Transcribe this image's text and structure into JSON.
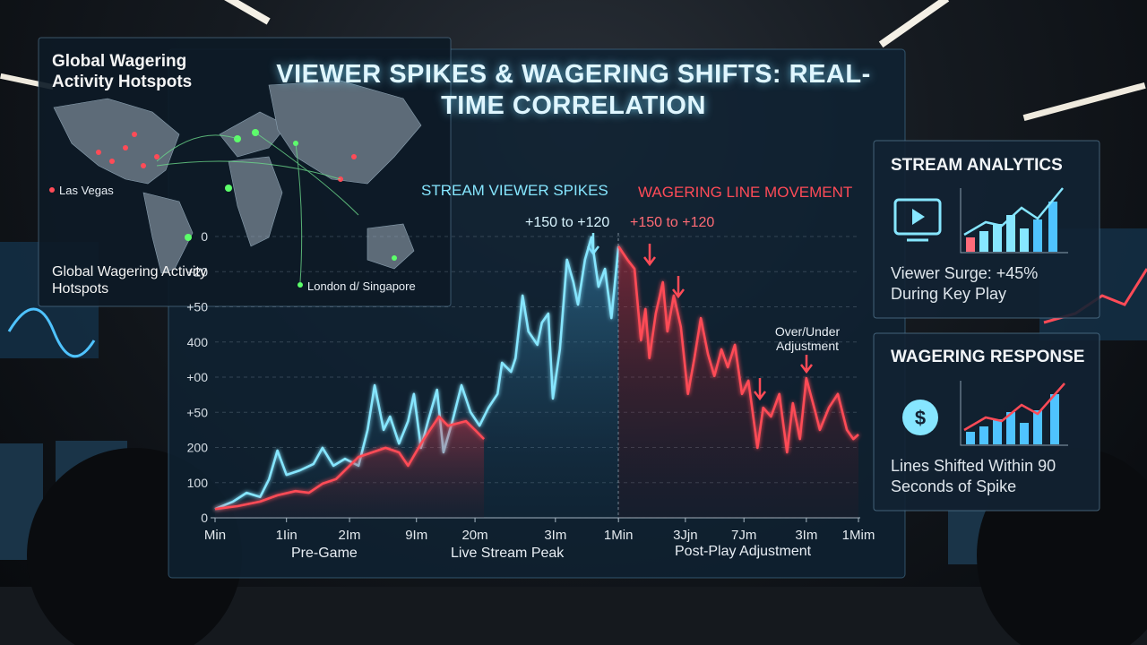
{
  "chart_data": {
    "type": "line",
    "title": "VIEWER SPIKES & WAGERING SHIFTS: REAL-TIME CORRELATION",
    "xlim": [
      0,
      10
    ],
    "xticks": [
      {
        "value": 0,
        "label": "Min"
      },
      {
        "value": 1.11,
        "label": "1Iin"
      },
      {
        "value": 2.09,
        "label": "2Im"
      },
      {
        "value": 3.13,
        "label": "9Im"
      },
      {
        "value": 4.04,
        "label": "20m"
      },
      {
        "value": 5.29,
        "label": "3Im"
      },
      {
        "value": 6.27,
        "label": "1Min"
      },
      {
        "value": 7.31,
        "label": "3Jjn"
      },
      {
        "value": 8.22,
        "label": "7Jm"
      },
      {
        "value": 9.19,
        "label": "3Im"
      },
      {
        "value": 10,
        "label": "1Mim"
      }
    ],
    "ylim": [
      0,
      800
    ],
    "yticks": [
      0,
      100,
      200,
      {
        "value": 300,
        "label": "+50"
      },
      {
        "value": 400,
        "label": "+00"
      },
      {
        "value": 500,
        "label": "400"
      },
      {
        "value": 600,
        "label": "+50"
      },
      {
        "value": 700,
        "label": "+20"
      },
      {
        "value": 800,
        "label": "0"
      }
    ],
    "grid": true,
    "phases": [
      "Pre-Game",
      "Live Stream Peak",
      "Post-Play Adjustment"
    ],
    "annotations": [
      "+150 to +120",
      "+150 to +120",
      "Over/Under Adjustment"
    ],
    "series": [
      {
        "name": "STREAM VIEWER SPIKES",
        "color": "#86e6ff",
        "x": [
          0,
          0.28,
          0.49,
          0.7,
          0.84,
          0.97,
          1.11,
          1.32,
          1.53,
          1.67,
          1.84,
          2.02,
          2.23,
          2.37,
          2.48,
          2.62,
          2.72,
          2.86,
          3.0,
          3.09,
          3.2,
          3.31,
          3.45,
          3.55,
          3.69,
          3.83,
          3.97,
          4.11,
          4.25,
          4.39,
          4.46,
          4.6,
          4.67,
          4.78,
          4.87,
          5.01,
          5.08,
          5.18,
          5.25,
          5.36,
          5.47,
          5.57,
          5.64,
          5.75,
          5.85,
          5.96,
          6.06,
          6.16,
          6.27
        ],
        "values": [
          25,
          46,
          71,
          59,
          110,
          191,
          122,
          135,
          153,
          199,
          148,
          168,
          148,
          250,
          377,
          250,
          288,
          211,
          275,
          352,
          199,
          275,
          364,
          186,
          275,
          377,
          301,
          262,
          313,
          352,
          441,
          415,
          454,
          632,
          530,
          492,
          555,
          581,
          339,
          479,
          734,
          670,
          606,
          734,
          798,
          657,
          708,
          568,
          772
        ]
      },
      {
        "name": "WAGERING LINE MOVEMENT",
        "color": "#ff4b57",
        "x": [
          0,
          0.35,
          0.7,
          0.97,
          1.25,
          1.46,
          1.67,
          1.88,
          2.09,
          2.23,
          2.44,
          2.65,
          2.86,
          3.0,
          3.2,
          3.34,
          3.48,
          3.62,
          3.9,
          4.04,
          4.18,
          null,
          6.27,
          6.41,
          6.52,
          6.62,
          6.69,
          6.75,
          6.85,
          6.96,
          7.03,
          7.13,
          7.24,
          7.35,
          7.45,
          7.55,
          7.66,
          7.76,
          7.87,
          7.97,
          8.08,
          8.19,
          8.29,
          8.43,
          8.52,
          8.64,
          8.77,
          8.89,
          8.98,
          9.09,
          9.19,
          9.33,
          9.4,
          9.54,
          9.68,
          9.82,
          9.92,
          10.0
        ],
        "values": [
          25,
          33,
          46,
          64,
          76,
          71,
          97,
          110,
          148,
          173,
          186,
          199,
          186,
          148,
          211,
          250,
          288,
          262,
          275,
          250,
          224,
          null,
          772,
          734,
          708,
          505,
          594,
          454,
          581,
          670,
          530,
          632,
          543,
          352,
          454,
          568,
          466,
          403,
          479,
          428,
          492,
          352,
          390,
          199,
          313,
          288,
          352,
          186,
          326,
          224,
          397,
          301,
          250,
          313,
          352,
          250,
          224,
          237
        ]
      }
    ]
  },
  "map": {
    "title": "Global Wagering Activity Hotspots",
    "caption": "Global Wagering Activity Hotspots",
    "labels": [
      "Las Vegas",
      "London d/ Singapore"
    ]
  },
  "panels": [
    {
      "title": "STREAM ANALYTICS",
      "text": "Viewer Surge: +45% During Key Play"
    },
    {
      "title": "WAGERING RESPONSE",
      "text": "Lines Shifted Within 90 Seconds of Spike"
    }
  ]
}
